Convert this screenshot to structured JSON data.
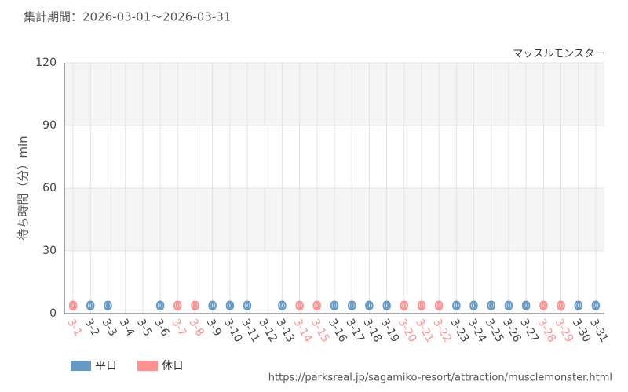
{
  "chart_data": {
    "type": "bar",
    "title": "集計期間：2026-03-01～2026-03-31",
    "subtitle": "マッスルモンスター",
    "y_label": "待ち時間（分）min",
    "source": "https://parksreal.jp/sagamiko-resort/attraction/musclemonster.html",
    "categories": [
      "3-1",
      "3-2",
      "3-3",
      "3-4",
      "3-5",
      "3-6",
      "3-7",
      "3-8",
      "3-9",
      "3-10",
      "3-11",
      "3-12",
      "3-13",
      "3-14",
      "3-15",
      "3-16",
      "3-17",
      "3-18",
      "3-19",
      "3-20",
      "3-21",
      "3-22",
      "3-23",
      "3-24",
      "3-25",
      "3-26",
      "3-27",
      "3-28",
      "3-29",
      "3-30",
      "3-31"
    ],
    "series": [
      {
        "name": "平日",
        "color": "#6699c4",
        "values": [
          null,
          0,
          0,
          null,
          null,
          0,
          null,
          null,
          0,
          0,
          0,
          null,
          0,
          null,
          null,
          0,
          0,
          0,
          0,
          null,
          null,
          null,
          0,
          0,
          0,
          0,
          0,
          null,
          null,
          0,
          0
        ]
      },
      {
        "name": "休日",
        "color": "#ff9191",
        "values": [
          0,
          null,
          null,
          null,
          null,
          null,
          0,
          0,
          null,
          null,
          null,
          null,
          null,
          0,
          0,
          null,
          null,
          null,
          null,
          0,
          0,
          0,
          null,
          null,
          null,
          null,
          null,
          0,
          0,
          null,
          null
        ]
      }
    ],
    "ylim": [
      0,
      120
    ],
    "yticks": [
      0,
      30,
      60,
      90,
      120
    ],
    "grid": true
  }
}
